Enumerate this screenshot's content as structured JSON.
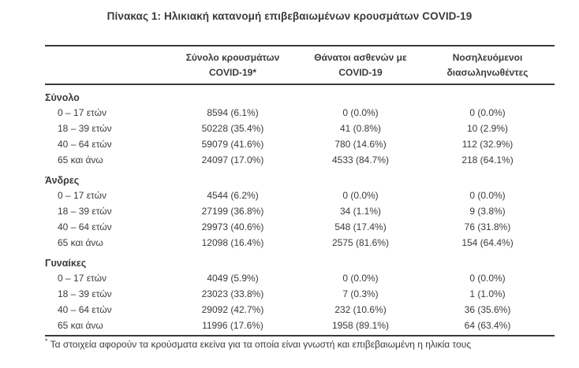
{
  "title": "Πίνακας 1: Ηλικιακή κατανομή επιβεβαιωμένων κρουσμάτων COVID-19",
  "table": {
    "columns": [
      {
        "line1": "Σύνολο κρουσμάτων",
        "line2": "COVID-19*"
      },
      {
        "line1": "Θάνατοι ασθενών με",
        "line2": "COVID-19"
      },
      {
        "line1": "Νοσηλευόμενοι",
        "line2": "διασωληνωθέντες"
      }
    ],
    "sections": [
      {
        "label": "Σύνολο",
        "rows": [
          {
            "age": "0 – 17 ετών",
            "cases": "8594 (6.1%)",
            "deaths": "0 (0.0%)",
            "intubated": "0 (0.0%)"
          },
          {
            "age": "18 – 39 ετών",
            "cases": "50228 (35.4%)",
            "deaths": "41 (0.8%)",
            "intubated": "10 (2.9%)"
          },
          {
            "age": "40 – 64 ετών",
            "cases": "59079 (41.6%)",
            "deaths": "780 (14.6%)",
            "intubated": "112 (32.9%)"
          },
          {
            "age": "65 και άνω",
            "cases": "24097 (17.0%)",
            "deaths": "4533 (84.7%)",
            "intubated": "218 (64.1%)"
          }
        ]
      },
      {
        "label": "Άνδρες",
        "rows": [
          {
            "age": "0 – 17 ετών",
            "cases": "4544 (6.2%)",
            "deaths": "0 (0.0%)",
            "intubated": "0 (0.0%)"
          },
          {
            "age": "18 – 39 ετών",
            "cases": "27199 (36.8%)",
            "deaths": "34 (1.1%)",
            "intubated": "9 (3.8%)"
          },
          {
            "age": "40 – 64 ετών",
            "cases": "29973 (40.6%)",
            "deaths": "548 (17.4%)",
            "intubated": "76 (31.8%)"
          },
          {
            "age": "65 και άνω",
            "cases": "12098 (16.4%)",
            "deaths": "2575 (81.6%)",
            "intubated": "154 (64.4%)"
          }
        ]
      },
      {
        "label": "Γυναίκες",
        "rows": [
          {
            "age": "0 – 17 ετών",
            "cases": "4049 (5.9%)",
            "deaths": "0 (0.0%)",
            "intubated": "0 (0.0%)"
          },
          {
            "age": "18 – 39 ετών",
            "cases": "23023 (33.8%)",
            "deaths": "7 (0.3%)",
            "intubated": "1 (1.0%)"
          },
          {
            "age": "40 – 64 ετών",
            "cases": "29092 (42.7%)",
            "deaths": "232 (10.6%)",
            "intubated": "36 (35.6%)"
          },
          {
            "age": "65 και άνω",
            "cases": "11996 (17.6%)",
            "deaths": "1958 (89.1%)",
            "intubated": "64 (63.4%)"
          }
        ]
      }
    ]
  },
  "footnote": {
    "marker": "*",
    "text": "Τα στοιχεία αφορούν τα κρούσματα εκείνα για τα οποία είναι γνωστή και επιβεβαιωμένη η ηλικία τους"
  },
  "colors": {
    "text": "#3b3b3b",
    "rule": "#3b3b3b",
    "background": "#ffffff"
  }
}
